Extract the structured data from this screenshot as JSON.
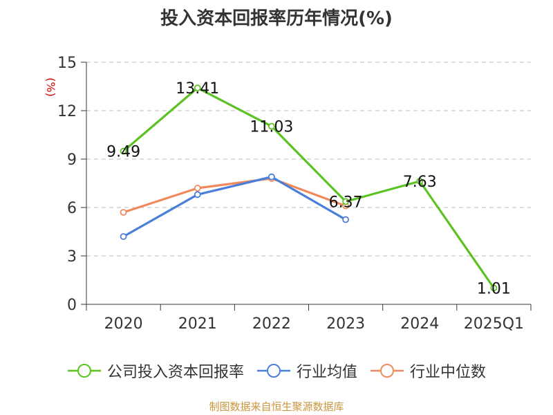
{
  "title": "投入资本回报率历年情况(%)",
  "source": "制图数据来自恒生聚源数据库",
  "colors": {
    "series1": "#5cc223",
    "series2": "#4a7fd9",
    "series3": "#f08a5d",
    "grid": "#bbbbbb",
    "axis": "#333333",
    "unit": "#cc0000"
  },
  "chart_data": {
    "type": "line",
    "title": "投入资本回报率历年情况(%)",
    "ylabel": "(%)",
    "xlabel": "",
    "categories": [
      "2020",
      "2021",
      "2022",
      "2023",
      "2024",
      "2025Q1"
    ],
    "ylim": [
      0,
      15
    ],
    "yticks": [
      0,
      3,
      6,
      9,
      12,
      15
    ],
    "grid": true,
    "legend_position": "bottom",
    "series": [
      {
        "name": "公司投入资本回报率",
        "values": [
          9.49,
          13.41,
          11.03,
          6.37,
          7.63,
          1.01
        ],
        "labels": [
          "9.49",
          "13.41",
          "11.03",
          "6.37",
          "7.63",
          "1.01"
        ],
        "color": "#5cc223"
      },
      {
        "name": "行业均值",
        "values": [
          4.2,
          6.8,
          7.9,
          5.25,
          null,
          null
        ],
        "color": "#4a7fd9"
      },
      {
        "name": "行业中位数",
        "values": [
          5.7,
          7.2,
          7.8,
          6.1,
          null,
          null
        ],
        "color": "#f08a5d"
      }
    ]
  }
}
